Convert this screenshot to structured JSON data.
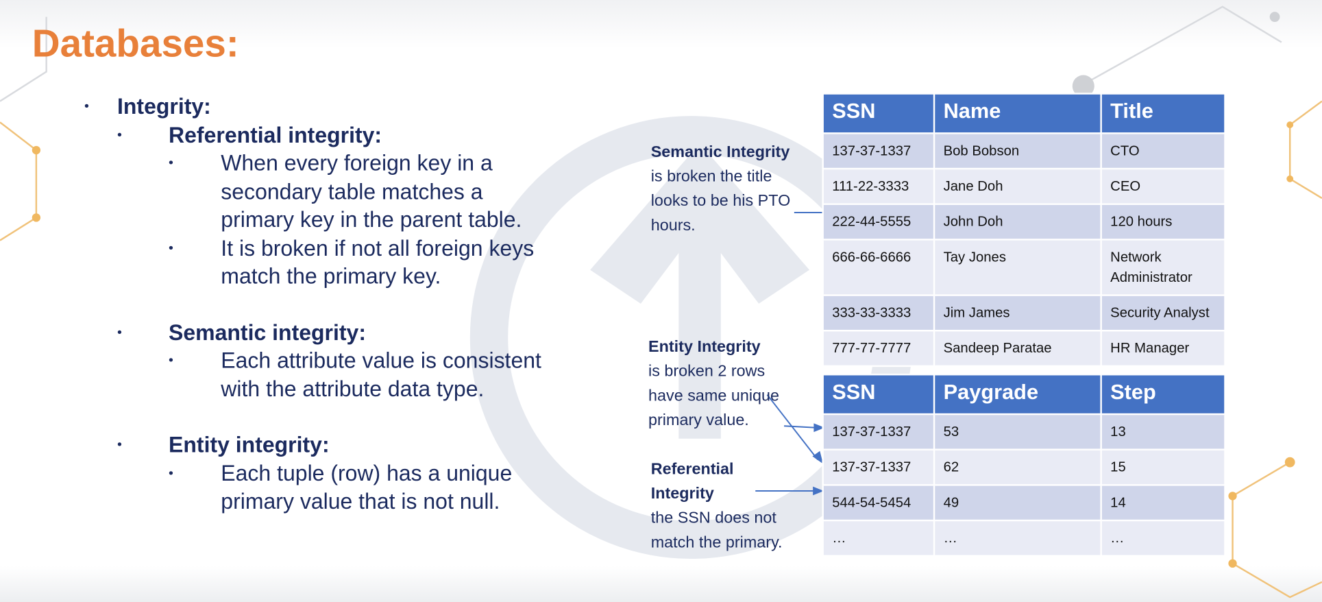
{
  "title": "Databases:",
  "bullets": [
    {
      "text": "Integrity:",
      "children": [
        {
          "text": "Referential integrity:",
          "children": [
            {
              "lines": [
                "When every foreign key in a",
                "secondary table matches a",
                "primary key in the parent table."
              ]
            },
            {
              "lines": [
                "It is broken if not all foreign keys",
                "match the primary key."
              ]
            }
          ]
        },
        {
          "text": "Semantic integrity:",
          "children": [
            {
              "lines": [
                "Each attribute value is consistent",
                "with the attribute data type."
              ]
            }
          ]
        },
        {
          "text": "Entity integrity:",
          "children": [
            {
              "lines": [
                "Each tuple (row) has a unique",
                "primary value that is not null."
              ]
            }
          ]
        }
      ]
    }
  ],
  "tables": [
    {
      "header": [
        "SSN",
        "Name",
        "Title"
      ],
      "rows": [
        [
          "137-37-1337",
          "Bob Bobson",
          "CTO"
        ],
        [
          "111-22-3333",
          "Jane Doh",
          "CEO"
        ],
        [
          "222-44-5555",
          "John Doh",
          "120 hours"
        ],
        [
          "666-66-6666",
          "Tay Jones",
          "Network Administrator"
        ],
        [
          "333-33-3333",
          "Jim James",
          "Security Analyst"
        ],
        [
          "777-77-7777",
          "Sandeep Paratae",
          "HR Manager"
        ]
      ]
    },
    {
      "header": [
        "SSN",
        "Paygrade",
        "Step"
      ],
      "rows": [
        [
          "137-37-1337",
          "53",
          "13"
        ],
        [
          "137-37-1337",
          "62",
          "15"
        ],
        [
          "544-54-5454",
          "49",
          "14"
        ],
        [
          "…",
          "…",
          "…"
        ]
      ]
    }
  ],
  "annotations": [
    {
      "heading": "Semantic Integrity",
      "text": "is broken the title looks to be his PTO hours."
    },
    {
      "heading": "Entity Integrity",
      "text": "is broken 2 rows have same unique primary value."
    },
    {
      "heading": "Referential Integrity",
      "text": "the SSN does not match the primary."
    }
  ]
}
